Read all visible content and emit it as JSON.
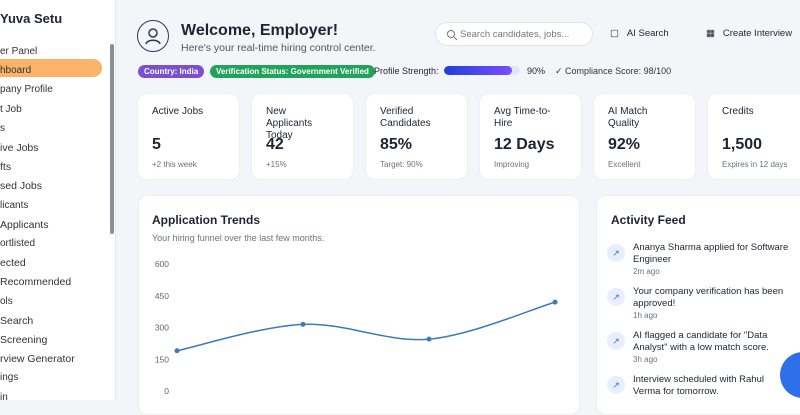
{
  "sidebar": {
    "brand": "Yuva Setu",
    "items": [
      "er Panel",
      "hboard",
      "pany Profile",
      "t Job",
      "s",
      "ive Jobs",
      "fts",
      "sed Jobs",
      "licants",
      " Applicants",
      "ortlisted",
      "ected",
      " Recommended",
      "ols",
      "Search",
      " Screening",
      "rview Generator",
      "ings",
      "in"
    ]
  },
  "header": {
    "title": "Welcome, Employer!",
    "subtitle": "Here's your real-time hiring control center.",
    "search_placeholder": "Search candidates, jobs...",
    "buttons": [
      "AI Search",
      "Create Interview"
    ]
  },
  "status": {
    "country": "Country: India",
    "verification": "Verification Status: Government Verified",
    "strength_label": "Profile Strength:",
    "strength": {
      "value": 90,
      "label": "90%"
    },
    "compliance": "Compliance Score: 98/100"
  },
  "stats": [
    {
      "label": "Active Jobs",
      "value": "5",
      "note": "+2 this week"
    },
    {
      "label": "New Applicants Today",
      "value": "42",
      "note": "+15%"
    },
    {
      "label": "Verified Candidates",
      "value": "85%",
      "note": "Target: 90%"
    },
    {
      "label": "Avg Time-to-Hire",
      "value": "12 Days",
      "note": "Improving"
    },
    {
      "label": "AI Match Quality",
      "value": "92%",
      "note": "Excellent"
    },
    {
      "label": "Credits",
      "value": "1,500",
      "note": "Expires in 12 days"
    }
  ],
  "trends": {
    "title": "Application Trends",
    "subtitle": "Your hiring funnel over the last few months.",
    "ylim": [
      0,
      600
    ],
    "yticks": [
      0,
      150,
      300,
      450,
      600
    ],
    "values": [
      190,
      315,
      245,
      420
    ]
  },
  "activity": {
    "title": "Activity Feed",
    "items": [
      {
        "text": "Ananya Sharma applied for Software Engineer",
        "time": "2m ago"
      },
      {
        "text": "Your company verification has been approved!",
        "time": "1h ago"
      },
      {
        "text": "AI flagged a candidate for \"Data Analyst\" with a low match score.",
        "time": "3h ago"
      },
      {
        "text": "Interview scheduled with Rahul Verma for tomorrow."
      }
    ]
  }
}
